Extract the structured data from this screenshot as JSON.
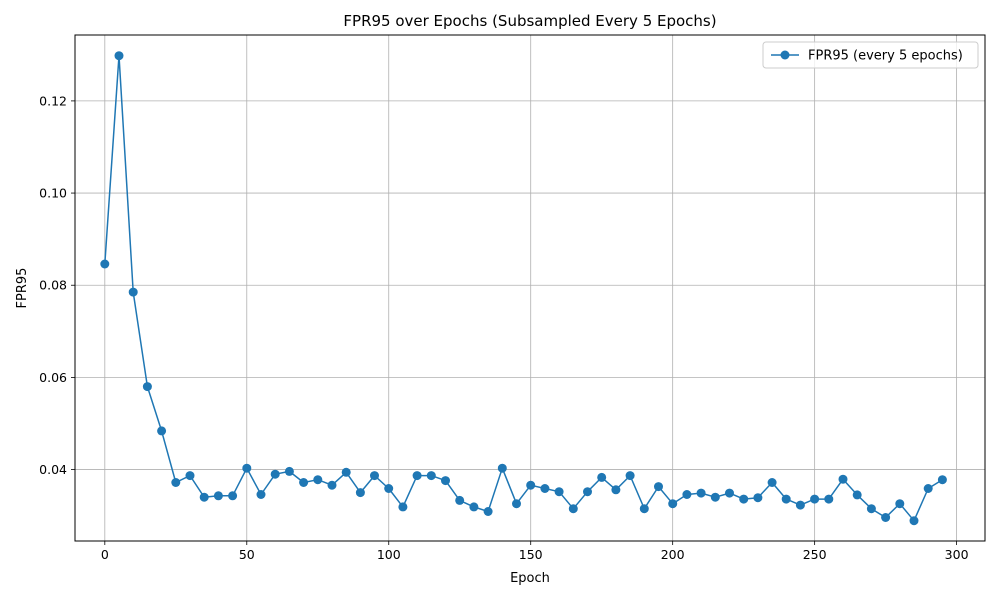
{
  "chart_data": {
    "type": "line",
    "title": "FPR95 over Epochs (Subsampled Every 5 Epochs)",
    "xlabel": "Epoch",
    "ylabel": "FPR95",
    "xlim": [
      -10.5,
      310
    ],
    "ylim": [
      0.0245,
      0.1343
    ],
    "xticks": [
      0,
      50,
      100,
      150,
      200,
      250,
      300
    ],
    "yticks": [
      0.04,
      0.06,
      0.08,
      0.1,
      0.12
    ],
    "ytick_labels": [
      "0.04",
      "0.06",
      "0.08",
      "0.10",
      "0.12"
    ],
    "grid": true,
    "legend_position": "top-right",
    "series": [
      {
        "name": "FPR95 (every 5 epochs)",
        "color": "#1f77b4",
        "marker": "circle",
        "x": [
          0,
          5,
          10,
          15,
          20,
          25,
          30,
          35,
          40,
          45,
          50,
          55,
          60,
          65,
          70,
          75,
          80,
          85,
          90,
          95,
          100,
          105,
          110,
          115,
          120,
          125,
          130,
          135,
          140,
          145,
          150,
          155,
          160,
          165,
          170,
          175,
          180,
          185,
          190,
          195,
          200,
          205,
          210,
          215,
          220,
          225,
          230,
          235,
          240,
          245,
          250,
          255,
          260,
          265,
          270,
          275,
          280,
          285,
          290,
          295
        ],
        "y": [
          0.0846,
          0.1298,
          0.0785,
          0.058,
          0.0484,
          0.0372,
          0.0387,
          0.034,
          0.0343,
          0.0343,
          0.0403,
          0.0346,
          0.039,
          0.0396,
          0.0372,
          0.0378,
          0.0366,
          0.0394,
          0.035,
          0.0387,
          0.0359,
          0.0319,
          0.0387,
          0.0387,
          0.0376,
          0.0333,
          0.0319,
          0.0309,
          0.0403,
          0.0326,
          0.0366,
          0.0359,
          0.0352,
          0.0315,
          0.0352,
          0.0383,
          0.0356,
          0.0387,
          0.0315,
          0.0363,
          0.0326,
          0.0346,
          0.0349,
          0.034,
          0.0349,
          0.0336,
          0.0339,
          0.0372,
          0.0336,
          0.0323,
          0.0336,
          0.0336,
          0.0379,
          0.0345,
          0.0315,
          0.0296,
          0.0326,
          0.0289,
          0.0359,
          0.0378
        ]
      }
    ]
  }
}
